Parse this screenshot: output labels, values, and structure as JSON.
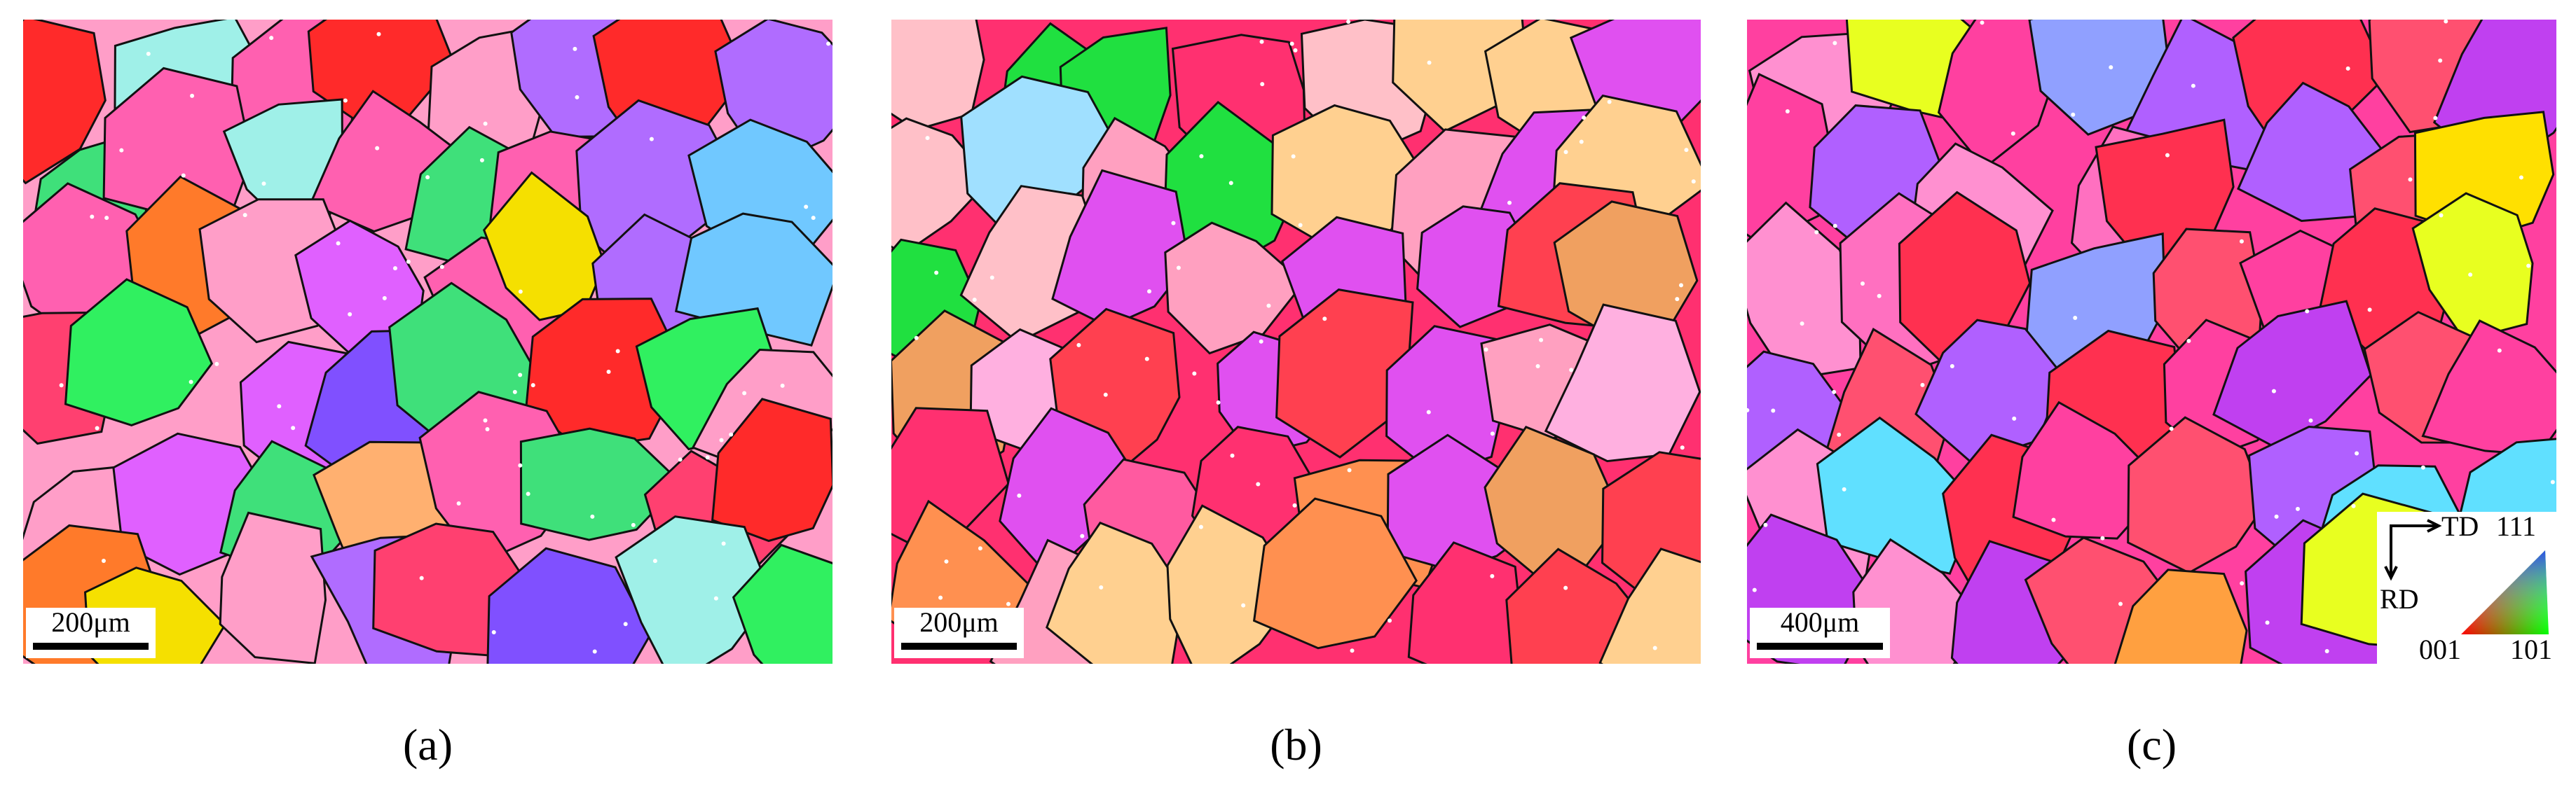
{
  "panels": [
    {
      "label": "(a)",
      "scale_bar": "200μm"
    },
    {
      "label": "(b)",
      "scale_bar": "200μm"
    },
    {
      "label": "(c)",
      "scale_bar": "400μm"
    }
  ],
  "legend": {
    "td": "TD",
    "rd": "RD",
    "corner_top": "111",
    "corner_left": "001",
    "corner_right": "101"
  }
}
